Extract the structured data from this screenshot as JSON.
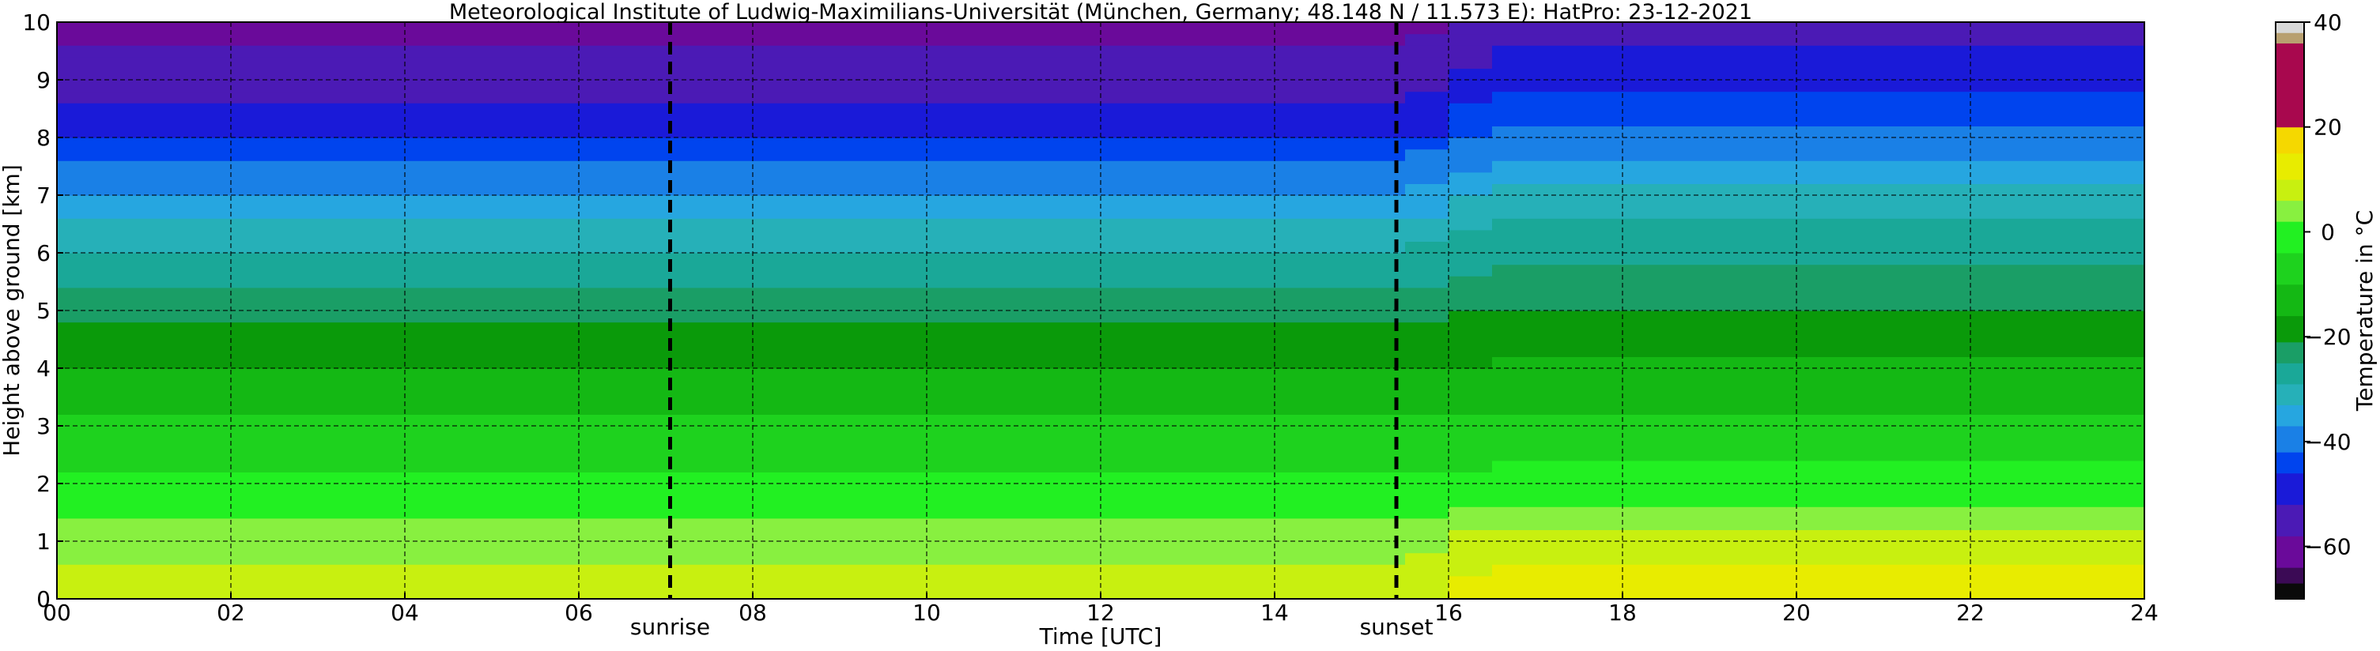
{
  "chart_data": {
    "type": "heatmap",
    "title": "Meteorological Institute of Ludwig-Maximilians-Universität (München, Germany; 48.148 N / 11.573 E):    HatPro: 23-12-2021",
    "xlabel": "Time [UTC]",
    "ylabel": "Height above ground [km]",
    "xlim": [
      0,
      24
    ],
    "ylim": [
      0,
      10
    ],
    "x_ticks": [
      "00",
      "02",
      "04",
      "06",
      "08",
      "10",
      "12",
      "14",
      "16",
      "18",
      "20",
      "22",
      "24"
    ],
    "x_tick_values": [
      0,
      2,
      4,
      6,
      8,
      10,
      12,
      14,
      16,
      18,
      20,
      22,
      24
    ],
    "y_ticks": [
      "0",
      "1",
      "2",
      "3",
      "4",
      "5",
      "6",
      "7",
      "8",
      "9",
      "10"
    ],
    "y_tick_values": [
      0,
      1,
      2,
      3,
      4,
      5,
      6,
      7,
      8,
      9,
      10
    ],
    "grid": true,
    "markers": [
      {
        "label": "sunrise",
        "x": 7.05
      },
      {
        "label": "sunset",
        "x": 15.4
      }
    ],
    "colorbar": {
      "label": "Temperature in °C",
      "range": [
        -70,
        40
      ],
      "tick_values": [
        40,
        20,
        0,
        -20,
        -40,
        -60
      ],
      "tick_labels": [
        "40",
        "20",
        "0",
        "−20",
        "−40",
        "−60"
      ],
      "segments": [
        {
          "from": -70,
          "to": -67,
          "color": "#0a0a0a"
        },
        {
          "from": -67,
          "to": -64,
          "color": "#3b0a55"
        },
        {
          "from": -64,
          "to": -58,
          "color": "#6a0a9a"
        },
        {
          "from": -58,
          "to": -52,
          "color": "#4b1ab5"
        },
        {
          "from": -52,
          "to": -46,
          "color": "#1a1ad8"
        },
        {
          "from": -46,
          "to": -42,
          "color": "#0044ee"
        },
        {
          "from": -42,
          "to": -37,
          "color": "#1a80e6"
        },
        {
          "from": -37,
          "to": -33,
          "color": "#26a6e0"
        },
        {
          "from": -33,
          "to": -29,
          "color": "#26b0b8"
        },
        {
          "from": -29,
          "to": -25,
          "color": "#1aa898"
        },
        {
          "from": -25,
          "to": -21,
          "color": "#1a9e66"
        },
        {
          "from": -21,
          "to": -16,
          "color": "#0a9a0a"
        },
        {
          "from": -16,
          "to": -10,
          "color": "#14b814"
        },
        {
          "from": -10,
          "to": -4,
          "color": "#1ed21e"
        },
        {
          "from": -4,
          "to": 2,
          "color": "#22f022"
        },
        {
          "from": 2,
          "to": 6,
          "color": "#88f040"
        },
        {
          "from": 6,
          "to": 10,
          "color": "#c8f010"
        },
        {
          "from": 10,
          "to": 15,
          "color": "#e8ec00"
        },
        {
          "from": 15,
          "to": 20,
          "color": "#f5d800"
        },
        {
          "from": 20,
          "to": 36,
          "color": "#a8084e"
        },
        {
          "from": 36,
          "to": 38,
          "color": "#b8a070"
        },
        {
          "from": 38,
          "to": 40,
          "color": "#d8d8d8"
        }
      ]
    },
    "profile_day": [
      {
        "height": 0.0,
        "temp": 8
      },
      {
        "height": 0.5,
        "temp": 6
      },
      {
        "height": 1.0,
        "temp": 4
      },
      {
        "height": 1.5,
        "temp": 1
      },
      {
        "height": 2.0,
        "temp": -3
      },
      {
        "height": 3.0,
        "temp": -9
      },
      {
        "height": 4.0,
        "temp": -16
      },
      {
        "height": 4.5,
        "temp": -20
      },
      {
        "height": 5.0,
        "temp": -22
      },
      {
        "height": 5.5,
        "temp": -26
      },
      {
        "height": 6.0,
        "temp": -29
      },
      {
        "height": 6.5,
        "temp": -33
      },
      {
        "height": 7.0,
        "temp": -37
      },
      {
        "height": 7.5,
        "temp": -41
      },
      {
        "height": 8.0,
        "temp": -47
      },
      {
        "height": 8.5,
        "temp": -52
      },
      {
        "height": 9.0,
        "temp": -54
      },
      {
        "height": 9.5,
        "temp": -58
      },
      {
        "height": 10.0,
        "temp": -62
      }
    ],
    "profile_evening": [
      {
        "height": 0.0,
        "temp": 13
      },
      {
        "height": 0.5,
        "temp": 11
      },
      {
        "height": 1.0,
        "temp": 8
      },
      {
        "height": 1.5,
        "temp": 3
      },
      {
        "height": 2.0,
        "temp": -2
      },
      {
        "height": 3.0,
        "temp": -8
      },
      {
        "height": 4.0,
        "temp": -15
      },
      {
        "height": 4.5,
        "temp": -19
      },
      {
        "height": 5.0,
        "temp": -21
      },
      {
        "height": 5.5,
        "temp": -24
      },
      {
        "height": 6.0,
        "temp": -26
      },
      {
        "height": 6.5,
        "temp": -29
      },
      {
        "height": 7.0,
        "temp": -32
      },
      {
        "height": 7.5,
        "temp": -36
      },
      {
        "height": 8.0,
        "temp": -40
      },
      {
        "height": 8.5,
        "temp": -44
      },
      {
        "height": 9.0,
        "temp": -49
      },
      {
        "height": 9.5,
        "temp": -52
      },
      {
        "height": 10.0,
        "temp": -55
      }
    ],
    "transition_hours": [
      15.5,
      16.5
    ]
  }
}
